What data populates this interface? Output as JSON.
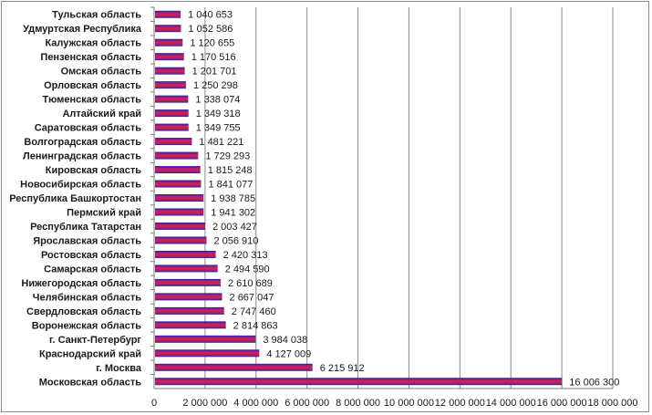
{
  "chart_data": {
    "type": "bar",
    "orientation": "horizontal",
    "title": "",
    "xlabel": "",
    "ylabel": "",
    "xlim": [
      0,
      18000000
    ],
    "x_tick_values": [
      0,
      2000000,
      4000000,
      6000000,
      8000000,
      10000000,
      12000000,
      14000000,
      16000000,
      18000000
    ],
    "x_tick_labels": [
      "0",
      "2 000 000",
      "4 000 000",
      "6 000 000",
      "8 000 000",
      "10 000 000",
      "12 000 000",
      "14 000 000",
      "16 000 000",
      "18 000 000"
    ],
    "grid": "vertical",
    "legend": "none",
    "bar_colors": {
      "top": "#1f1fb4",
      "middle": "#c8205a",
      "bottom": "#2a2aa0"
    },
    "categories": [
      "Тульская  область",
      "Удмуртская  Республика",
      "Калужская  область",
      "Пензенская  область",
      "Омская  область",
      "Орловская  область",
      "Тюменская  область",
      "Алтайский  край",
      "Саратовская  область",
      "Волгоградская  область",
      "Ленинградская  область",
      "Кировская  область",
      "Новосибирская  область",
      "Республика  Башкортостан",
      "Пермский  край",
      "Республика  Татарстан",
      "Ярославская  область",
      "Ростовская  область",
      "Самарская  область",
      "Нижегородская  область",
      "Челябинская  область",
      "Свердловская  область",
      "Воронежская  область",
      "г. Санкт-Петербург",
      "Краснодарский  край",
      "г. Москва",
      "Московская  область"
    ],
    "values": [
      1040653,
      1052586,
      1120655,
      1170516,
      1201701,
      1250298,
      1338074,
      1349318,
      1349755,
      1481221,
      1729293,
      1815248,
      1841077,
      1938785,
      1941302,
      2003427,
      2056910,
      2420313,
      2494590,
      2610689,
      2667047,
      2747460,
      2814863,
      3984038,
      4127009,
      6215912,
      16006300
    ],
    "data_labels": [
      "1 040 653",
      "1 052 586",
      "1 120 655",
      "1 170 516",
      "1 201 701",
      "1 250 298",
      "1 338 074",
      "1 349 318",
      "1 349 755",
      "1 481 221",
      "1 729 293",
      "1 815 248",
      "1 841 077",
      "1 938 785",
      "1 941 302",
      "2 003 427",
      "2 056 910",
      "2 420 313",
      "2 494 590",
      "2 610 689",
      "2 667 047",
      "2 747 460",
      "2 814 863",
      "3 984 038",
      "4 127 009",
      "6 215 912",
      "16 006 300"
    ]
  }
}
